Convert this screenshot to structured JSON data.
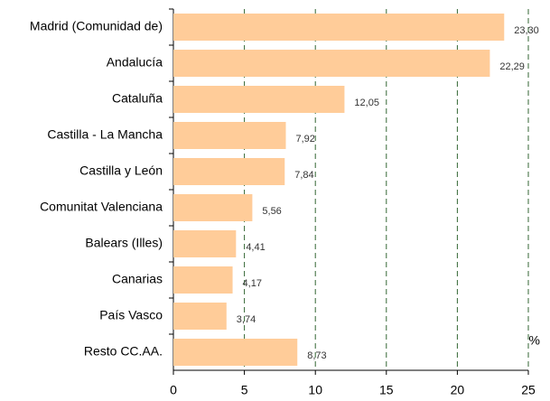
{
  "chart_data": {
    "type": "bar",
    "orientation": "horizontal",
    "categories": [
      "Madrid (Comunidad de)",
      "Andalucía",
      "Cataluña",
      "Castilla - La Mancha",
      "Castilla y León",
      "Comunitat Valenciana",
      "Balears (Illes)",
      "Canarias",
      "País Vasco",
      "Resto CC.AA."
    ],
    "values": [
      23.3,
      22.29,
      12.05,
      7.92,
      7.84,
      5.56,
      4.41,
      4.17,
      3.74,
      8.73
    ],
    "value_labels": [
      "23,30",
      "22,29",
      "12,05",
      "7,92",
      "7,84",
      "5,56",
      "4,41",
      "4,17",
      "3,74",
      "8,73"
    ],
    "color": "#ffcc99",
    "xlim": [
      0,
      25
    ],
    "xticks": [
      0,
      5,
      10,
      15,
      20,
      25
    ],
    "grid": true,
    "annotations": [
      "%"
    ]
  }
}
